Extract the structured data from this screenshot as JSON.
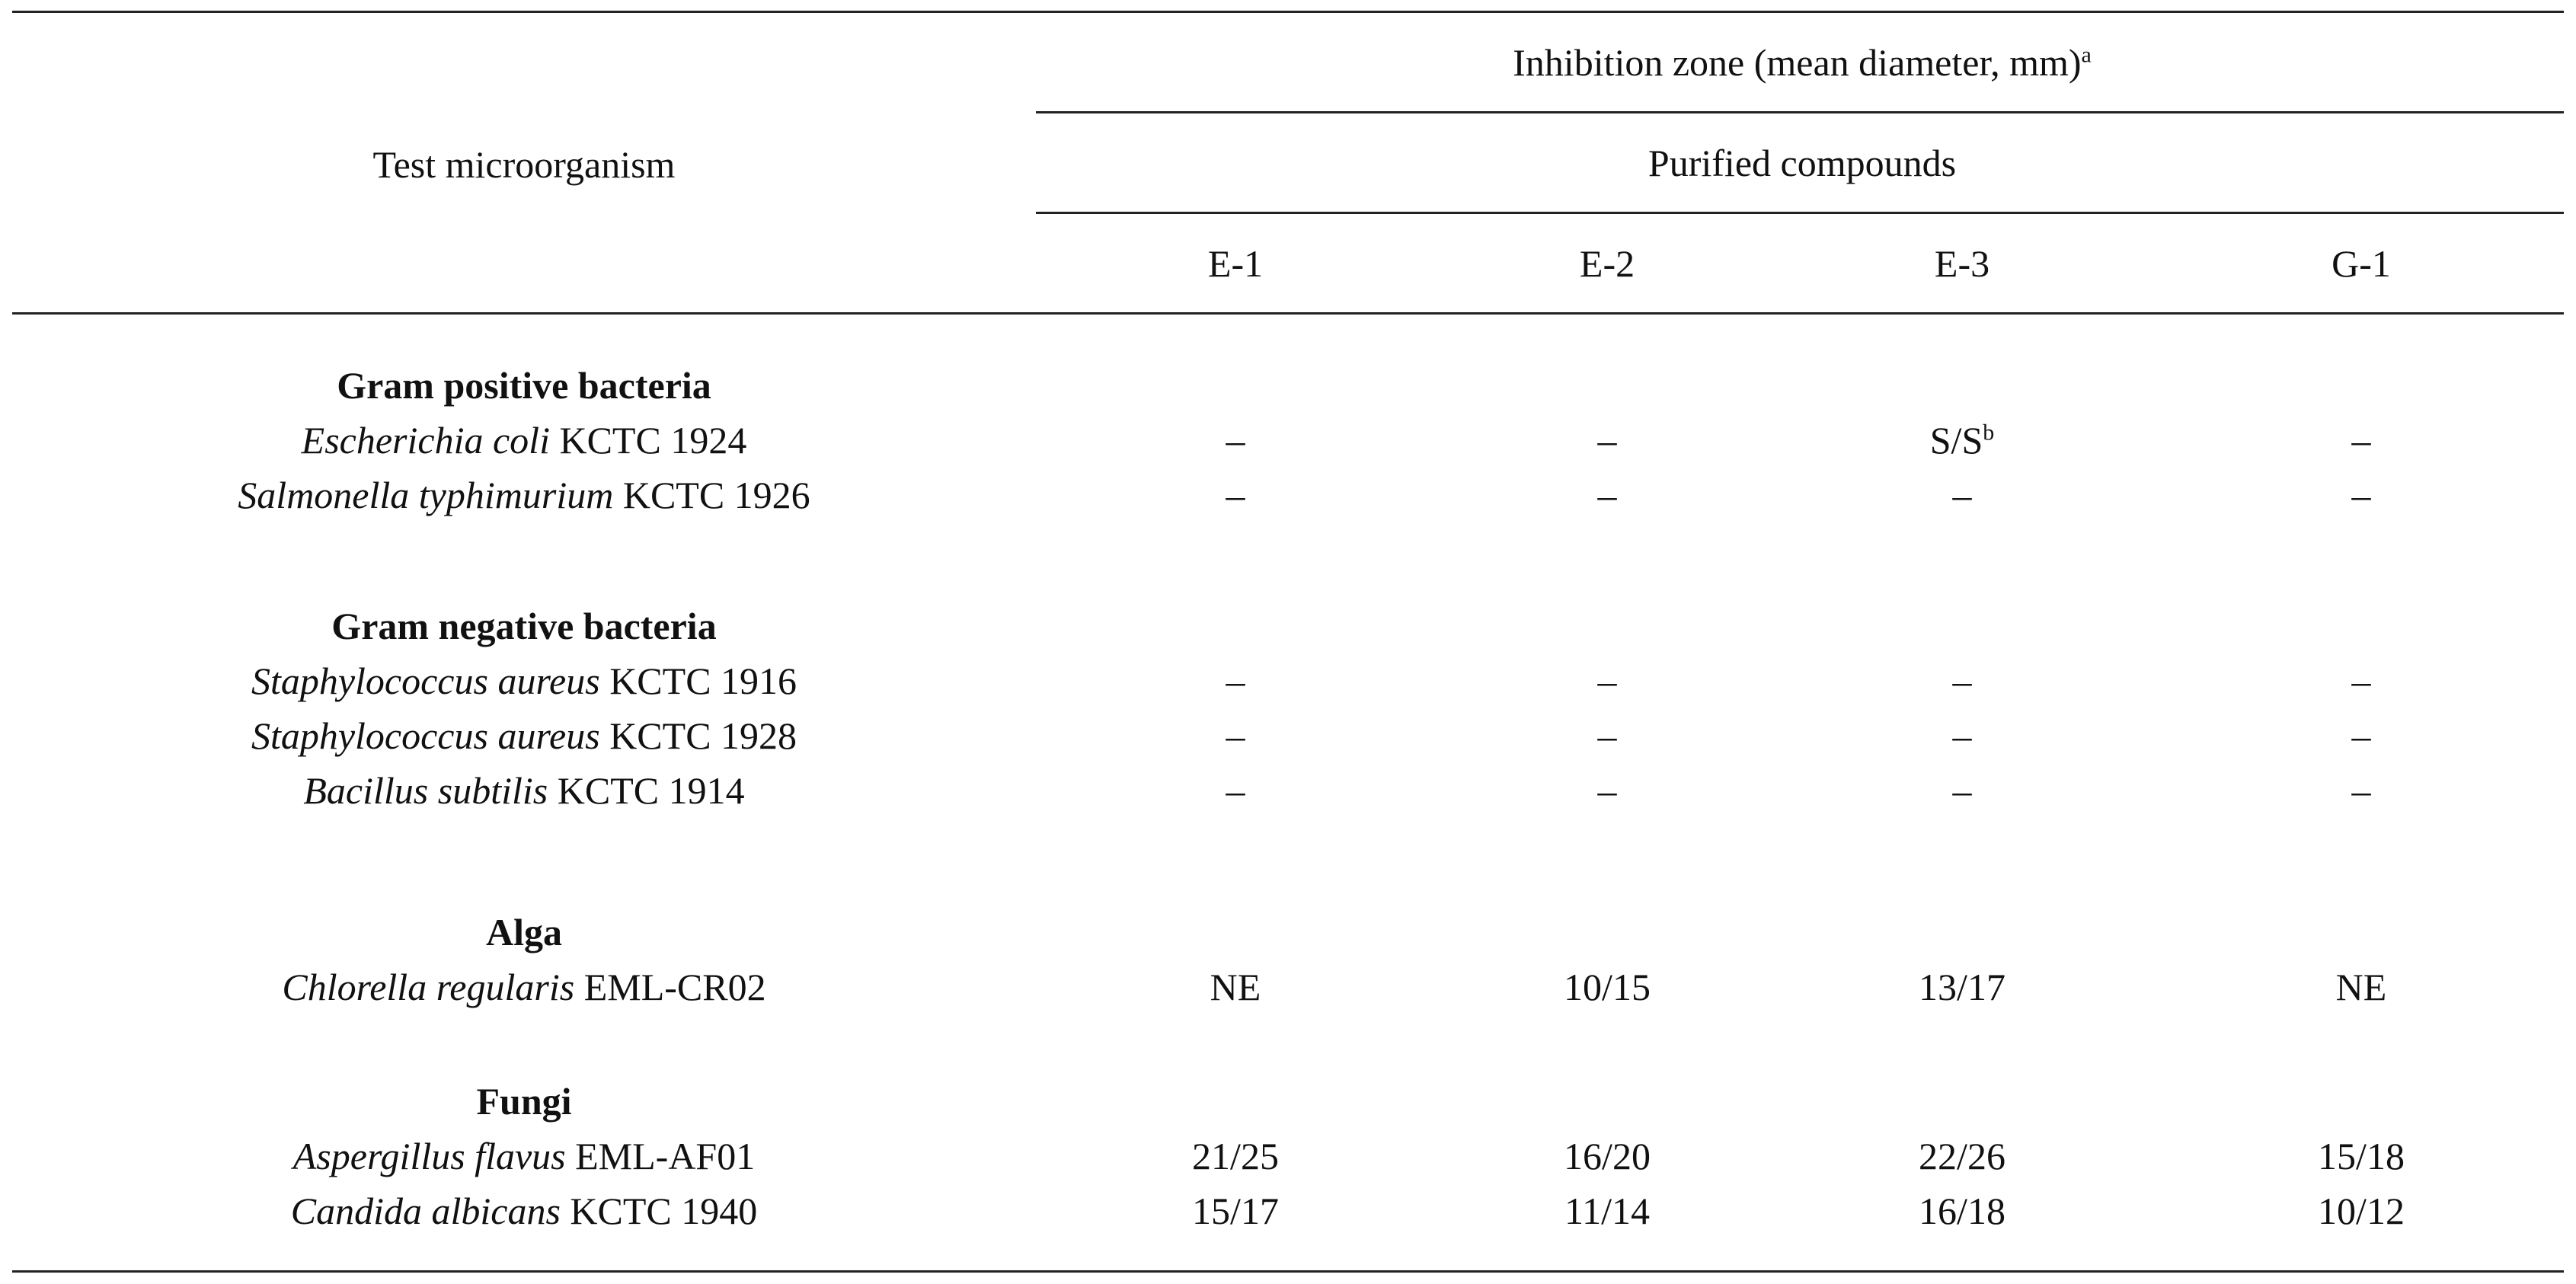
{
  "header": {
    "test_col": "Test microorganism",
    "inhibition_title": "Inhibition zone (mean diameter, mm)",
    "inhibition_note_mark": "a",
    "purified_title": "Purified compounds",
    "columns": [
      "E-1",
      "E-2",
      "E-3",
      "G-1"
    ]
  },
  "groups": [
    {
      "name": "Gram positive bacteria",
      "rows": [
        {
          "genus": "Escherichia coli",
          "strain": "KCTC 1924",
          "values": [
            "–",
            "–",
            "S/S",
            "–"
          ],
          "marks": [
            "",
            "",
            "b",
            ""
          ]
        },
        {
          "genus": "Salmonella typhimurium",
          "strain": "KCTC 1926",
          "values": [
            "–",
            "–",
            "–",
            "–"
          ],
          "marks": [
            "",
            "",
            "",
            ""
          ]
        }
      ]
    },
    {
      "name": "Gram negative bacteria",
      "rows": [
        {
          "genus": "Staphylococcus aureus",
          "strain": "KCTC 1916",
          "values": [
            "–",
            "–",
            "–",
            "–"
          ],
          "marks": [
            "",
            "",
            "",
            ""
          ]
        },
        {
          "genus": "Staphylococcus aureus",
          "strain": "KCTC 1928",
          "values": [
            "–",
            "–",
            "–",
            "–"
          ],
          "marks": [
            "",
            "",
            "",
            ""
          ]
        },
        {
          "genus": "Bacillus subtilis",
          "strain": "KCTC 1914",
          "values": [
            "–",
            "–",
            "–",
            "–"
          ],
          "marks": [
            "",
            "",
            "",
            ""
          ]
        }
      ]
    },
    {
      "name": "Alga",
      "rows": [
        {
          "genus": "Chlorella regularis",
          "strain": "EML-CR02",
          "values": [
            "NE",
            "10/15",
            "13/17",
            "NE"
          ],
          "marks": [
            "",
            "",
            "",
            ""
          ]
        }
      ]
    },
    {
      "name": "Fungi",
      "rows": [
        {
          "genus": "Aspergillus flavus",
          "strain": "EML-AF01",
          "values": [
            "21/25",
            "16/20",
            "22/26",
            "15/18"
          ],
          "marks": [
            "",
            "",
            "",
            ""
          ]
        },
        {
          "genus": "Candida albicans",
          "strain": "KCTC 1940",
          "values": [
            "15/17",
            "11/14",
            "16/18",
            "10/12"
          ],
          "marks": [
            "",
            "",
            "",
            ""
          ]
        }
      ]
    }
  ]
}
